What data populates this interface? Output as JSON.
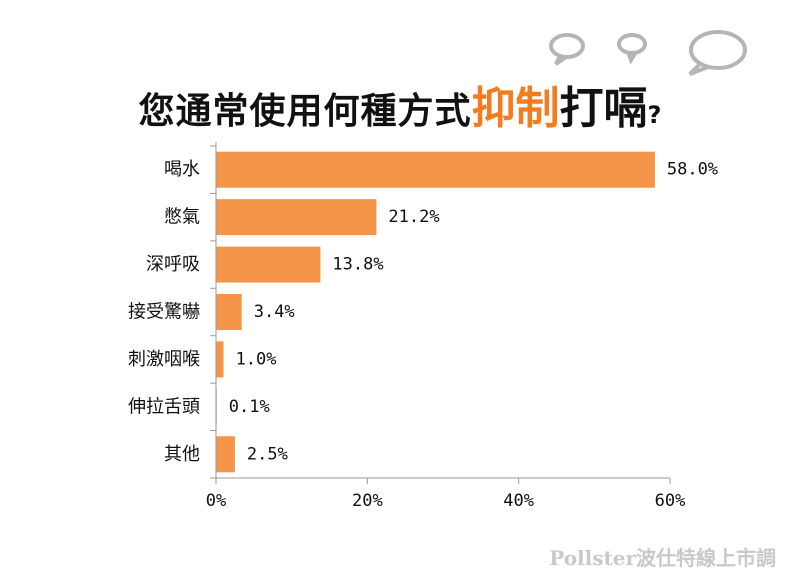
{
  "title": {
    "part1": "您通常使用何種方式",
    "part2": "抑制",
    "part3": "打嗝",
    "part4": "?"
  },
  "footer": "Pollster波仕特線上市調",
  "colors": {
    "bar": "#F5954A",
    "accent": "#F47C1E",
    "axis": "#9a9a9a"
  },
  "chart_data": {
    "type": "bar",
    "orientation": "horizontal",
    "categories": [
      "喝水",
      "憋氣",
      "深呼吸",
      "接受驚嚇",
      "刺激咽喉",
      "伸拉舌頭",
      "其他"
    ],
    "values": [
      58.0,
      21.2,
      13.8,
      3.4,
      1.0,
      0.1,
      2.5
    ],
    "value_labels": [
      "58.0%",
      "21.2%",
      "13.8%",
      "3.4%",
      "1.0%",
      "0.1%",
      "2.5%"
    ],
    "xlim": [
      0,
      60
    ],
    "xticks": [
      0,
      20,
      40,
      60
    ],
    "xtick_labels": [
      "0%",
      "20%",
      "40%",
      "60%"
    ],
    "xlabel": "",
    "ylabel": ""
  }
}
